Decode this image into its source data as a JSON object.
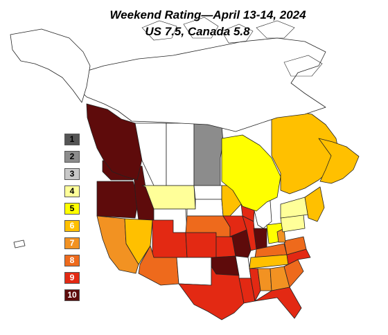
{
  "title": {
    "line1": "Weekend Rating—April 13-14, 2024",
    "line2": "US 7.5, Canada 5.8"
  },
  "legend": [
    {
      "rating": "1",
      "color": "#555555",
      "text_color": "#000000"
    },
    {
      "rating": "2",
      "color": "#8c8c8c",
      "text_color": "#000000"
    },
    {
      "rating": "3",
      "color": "#c8c8c8",
      "text_color": "#000000"
    },
    {
      "rating": "4",
      "color": "#ffff99",
      "text_color": "#000000"
    },
    {
      "rating": "5",
      "color": "#ffff00",
      "text_color": "#000000"
    },
    {
      "rating": "6",
      "color": "#ffc000",
      "text_color": "#ffffff"
    },
    {
      "rating": "7",
      "color": "#f29222",
      "text_color": "#ffffff"
    },
    {
      "rating": "8",
      "color": "#ee6a1c",
      "text_color": "#ffffff"
    },
    {
      "rating": "9",
      "color": "#e32913",
      "text_color": "#ffffff"
    },
    {
      "rating": "10",
      "color": "#5e0b0b",
      "text_color": "#ffffff"
    }
  ],
  "regions": [
    {
      "name": "Washington",
      "rating": 10
    },
    {
      "name": "Oregon",
      "rating": 10
    },
    {
      "name": "California",
      "rating": 7
    },
    {
      "name": "Idaho",
      "rating": 10
    },
    {
      "name": "Nevada",
      "rating": 6
    },
    {
      "name": "Montana",
      "rating": 4
    },
    {
      "name": "Wyoming",
      "rating": 0
    },
    {
      "name": "Utah",
      "rating": 9
    },
    {
      "name": "Arizona",
      "rating": 8
    },
    {
      "name": "Colorado",
      "rating": 9
    },
    {
      "name": "New Mexico",
      "rating": 0
    },
    {
      "name": "North Dakota",
      "rating": 0
    },
    {
      "name": "South Dakota",
      "rating": 0
    },
    {
      "name": "Nebraska",
      "rating": 8
    },
    {
      "name": "Kansas",
      "rating": 9
    },
    {
      "name": "Oklahoma",
      "rating": 10
    },
    {
      "name": "Texas",
      "rating": 9
    },
    {
      "name": "Minnesota",
      "rating": 6
    },
    {
      "name": "Iowa",
      "rating": 9
    },
    {
      "name": "Missouri",
      "rating": 10
    },
    {
      "name": "Arkansas",
      "rating": 0
    },
    {
      "name": "Louisiana",
      "rating": 9
    },
    {
      "name": "Wisconsin",
      "rating": 9
    },
    {
      "name": "Illinois",
      "rating": 9
    },
    {
      "name": "Michigan",
      "rating": 0
    },
    {
      "name": "Indiana",
      "rating": 10
    },
    {
      "name": "Ohio",
      "rating": 5
    },
    {
      "name": "Kentucky",
      "rating": 8
    },
    {
      "name": "Tennessee",
      "rating": 6
    },
    {
      "name": "Mississippi",
      "rating": 9
    },
    {
      "name": "Alabama",
      "rating": 7
    },
    {
      "name": "Georgia",
      "rating": 7
    },
    {
      "name": "Florida",
      "rating": 9
    },
    {
      "name": "South Carolina",
      "rating": 8
    },
    {
      "name": "North Carolina",
      "rating": 9
    },
    {
      "name": "Virginia",
      "rating": 8
    },
    {
      "name": "West Virginia",
      "rating": 7
    },
    {
      "name": "Pennsylvania",
      "rating": 4
    },
    {
      "name": "New York",
      "rating": 4
    },
    {
      "name": "New England",
      "rating": 6
    },
    {
      "name": "British Columbia",
      "rating": 10
    },
    {
      "name": "Alberta",
      "rating": 0
    },
    {
      "name": "Saskatchewan",
      "rating": 0
    },
    {
      "name": "Manitoba",
      "rating": 2
    },
    {
      "name": "Ontario",
      "rating": 5
    },
    {
      "name": "Quebec",
      "rating": 6
    },
    {
      "name": "Atlantic Canada",
      "rating": 6
    },
    {
      "name": "Northern Canada",
      "rating": 0
    },
    {
      "name": "Alaska",
      "rating": 0
    },
    {
      "name": "Hawaii",
      "rating": 0
    }
  ]
}
